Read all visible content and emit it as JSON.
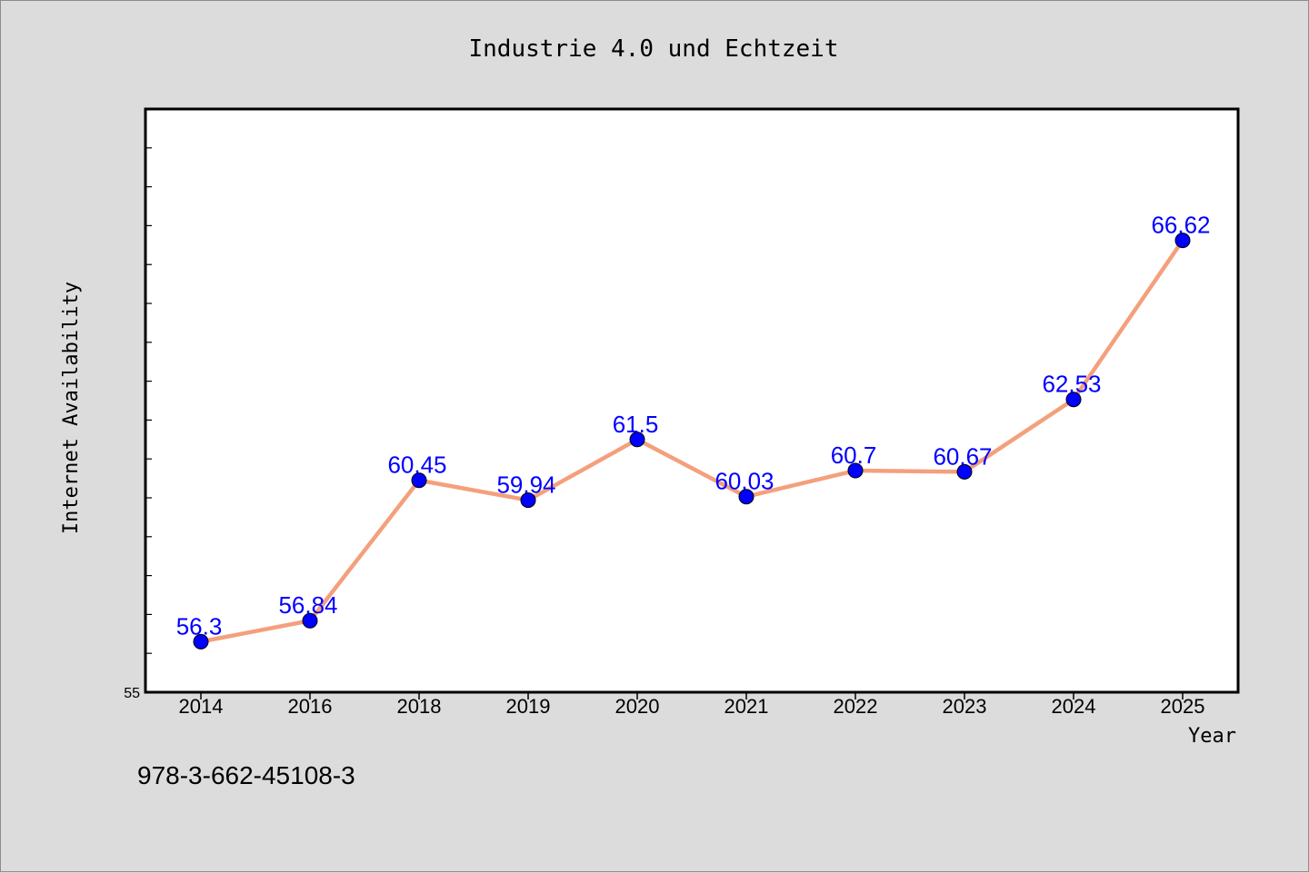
{
  "chart_data": {
    "type": "line",
    "title": "Industrie 4.0 und Echtzeit",
    "xlabel": "Year",
    "ylabel": "Internet Availability",
    "categories": [
      "2014",
      "2016",
      "2018",
      "2019",
      "2020",
      "2021",
      "2022",
      "2023",
      "2024",
      "2025"
    ],
    "series": [
      {
        "values": [
          56.3,
          56.84,
          60.45,
          59.94,
          61.5,
          60.03,
          60.7,
          60.67,
          62.53,
          66.62
        ],
        "labels": [
          "56.3",
          "56.84",
          "60.45",
          "59.94",
          "61.5",
          "60.03",
          "60.7",
          "60.67",
          "62.53",
          "66.62"
        ],
        "line_color": "#f4a07c",
        "marker_color": "#0000ff"
      }
    ],
    "ylim": [
      55,
      70
    ],
    "y_tick_labels": [
      "55"
    ],
    "grid": false,
    "legend": "none"
  },
  "footer": {
    "isbn": "978-3-662-45108-3"
  },
  "colors": {
    "background": "#dcdcdc",
    "plot_background": "#ffffff",
    "axis": "#000000"
  }
}
